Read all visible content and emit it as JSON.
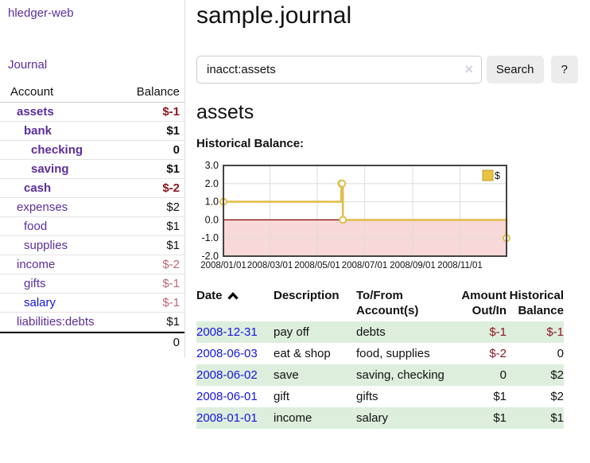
{
  "app": {
    "brand": "hledger-web"
  },
  "colors": {
    "link_purple": "#5c2d9c",
    "link_blue": "#1515dd",
    "negative_strong": "#8e1623",
    "negative_muted": "#bb6677",
    "row_stripe_green": "#ddeedd",
    "chart_line_gold": "#e0bf4d",
    "chart_negative_region_pink": "#f8d8d8",
    "chart_zero_line_red": "#800000",
    "chart_border_gray": "#444444"
  },
  "sidebar": {
    "journal_link": "Journal",
    "table_headers": {
      "account": "Account",
      "balance": "Balance"
    },
    "accounts": [
      {
        "name": "assets",
        "balance": "$-1",
        "indent": 1,
        "bold": true,
        "balance_class": "neg",
        "link_color": "purple"
      },
      {
        "name": "bank",
        "balance": "$1",
        "indent": 2,
        "bold": true,
        "balance_class": "",
        "link_color": "purple"
      },
      {
        "name": "checking",
        "balance": "0",
        "indent": 3,
        "bold": true,
        "balance_class": "",
        "link_color": "purple"
      },
      {
        "name": "saving",
        "balance": "$1",
        "indent": 3,
        "bold": true,
        "balance_class": "",
        "link_color": "purple"
      },
      {
        "name": "cash",
        "balance": "$-2",
        "indent": 2,
        "bold": true,
        "balance_class": "neg",
        "link_color": "purple"
      },
      {
        "name": "expenses",
        "balance": "$2",
        "indent": 1,
        "bold": false,
        "balance_class": "",
        "link_color": "purple"
      },
      {
        "name": "food",
        "balance": "$1",
        "indent": 2,
        "bold": false,
        "balance_class": "",
        "link_color": "purple"
      },
      {
        "name": "supplies",
        "balance": "$1",
        "indent": 2,
        "bold": false,
        "balance_class": "",
        "link_color": "purple"
      },
      {
        "name": "income",
        "balance": "$-2",
        "indent": 1,
        "bold": false,
        "balance_class": "negmuted",
        "link_color": "purple"
      },
      {
        "name": "gifts",
        "balance": "$-1",
        "indent": 2,
        "bold": false,
        "balance_class": "negmuted",
        "link_color": "purple"
      },
      {
        "name": "salary",
        "balance": "$-1",
        "indent": 2,
        "bold": false,
        "balance_class": "negmuted",
        "link_color": "blue"
      },
      {
        "name": "liabilities:debts",
        "balance": "$1",
        "indent": 1,
        "bold": false,
        "balance_class": "",
        "link_color": "purple"
      }
    ],
    "total": "0"
  },
  "main": {
    "title": "sample.journal",
    "search": {
      "value": "inacct:assets",
      "clear_icon": "✕",
      "search_button": "Search",
      "help_button": "?"
    },
    "account_heading": "assets",
    "chart_label": "Historical Balance:"
  },
  "chart_data": {
    "type": "line",
    "step": true,
    "title": "Historical Balance:",
    "x_range": [
      "2008-01-01",
      "2008-12-31"
    ],
    "ylim": [
      -2,
      3
    ],
    "yticks": [
      3.0,
      2.0,
      1.0,
      0.0,
      -1.0,
      -2.0
    ],
    "xticks": [
      {
        "label": "2008/01/01",
        "date": "2008-01-01"
      },
      {
        "label": "2008/03/01",
        "date": "2008-03-01"
      },
      {
        "label": "2008/05/01",
        "date": "2008-05-01"
      },
      {
        "label": "2008/07/01",
        "date": "2008-07-01"
      },
      {
        "label": "2008/09/01",
        "date": "2008-09-01"
      },
      {
        "label": "2008/11/01",
        "date": "2008-11-01"
      }
    ],
    "series": [
      {
        "name": "$",
        "color": "#e0bf4d",
        "points": [
          [
            "2008-01-01",
            1
          ],
          [
            "2008-06-01",
            2
          ],
          [
            "2008-06-02",
            2
          ],
          [
            "2008-06-03",
            0
          ],
          [
            "2008-12-31",
            -1
          ]
        ]
      }
    ],
    "legend_position": "top-right",
    "grid": true,
    "colors": {
      "negative_region": "#f8d8d8",
      "zero_line": "#800000",
      "border": "#444444",
      "grid": "#dddddd",
      "legend_fill": "#e7c33f",
      "legend_stroke": "#bd9d2d"
    }
  },
  "register": {
    "columns": [
      "Date",
      "Description",
      "To/From Account(s)",
      "Amount Out/In",
      "Historical Balance"
    ],
    "sort_indicator": "ascending",
    "rows": [
      {
        "date": "2008-12-31",
        "description": "pay off",
        "accounts": "debts",
        "amount": "$-1",
        "amount_class": "neg",
        "balance": "$-1",
        "balance_class": "neg"
      },
      {
        "date": "2008-06-03",
        "description": "eat & shop",
        "accounts": "food, supplies",
        "amount": "$-2",
        "amount_class": "neg",
        "balance": "0",
        "balance_class": ""
      },
      {
        "date": "2008-06-02",
        "description": "save",
        "accounts": "saving, checking",
        "amount": "0",
        "amount_class": "",
        "balance": "$2",
        "balance_class": ""
      },
      {
        "date": "2008-06-01",
        "description": "gift",
        "accounts": "gifts",
        "amount": "$1",
        "amount_class": "",
        "balance": "$2",
        "balance_class": ""
      },
      {
        "date": "2008-01-01",
        "description": "income",
        "accounts": "salary",
        "amount": "$1",
        "amount_class": "",
        "balance": "$1",
        "balance_class": ""
      }
    ]
  }
}
